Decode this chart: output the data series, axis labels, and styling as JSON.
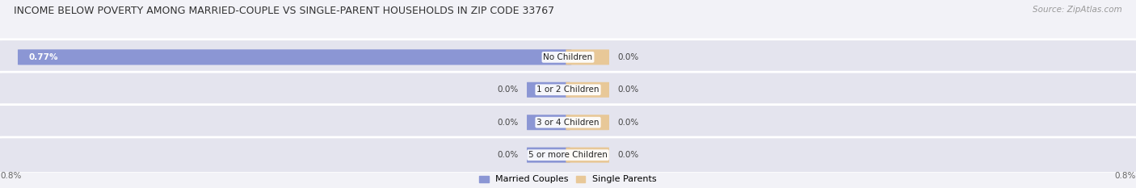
{
  "title": "INCOME BELOW POVERTY AMONG MARRIED-COUPLE VS SINGLE-PARENT HOUSEHOLDS IN ZIP CODE 33767",
  "source": "Source: ZipAtlas.com",
  "categories": [
    "No Children",
    "1 or 2 Children",
    "3 or 4 Children",
    "5 or more Children"
  ],
  "married_values": [
    0.77,
    0.0,
    0.0,
    0.0
  ],
  "single_values": [
    0.0,
    0.0,
    0.0,
    0.0
  ],
  "married_color": "#8B96D4",
  "single_color": "#E8C898",
  "xlim": [
    -0.8,
    0.8
  ],
  "background_color": "#f2f2f7",
  "row_bg_color": "#e4e4ee",
  "title_fontsize": 9.0,
  "source_fontsize": 7.5,
  "label_fontsize": 7.5,
  "category_fontsize": 7.5,
  "legend_fontsize": 8.0
}
